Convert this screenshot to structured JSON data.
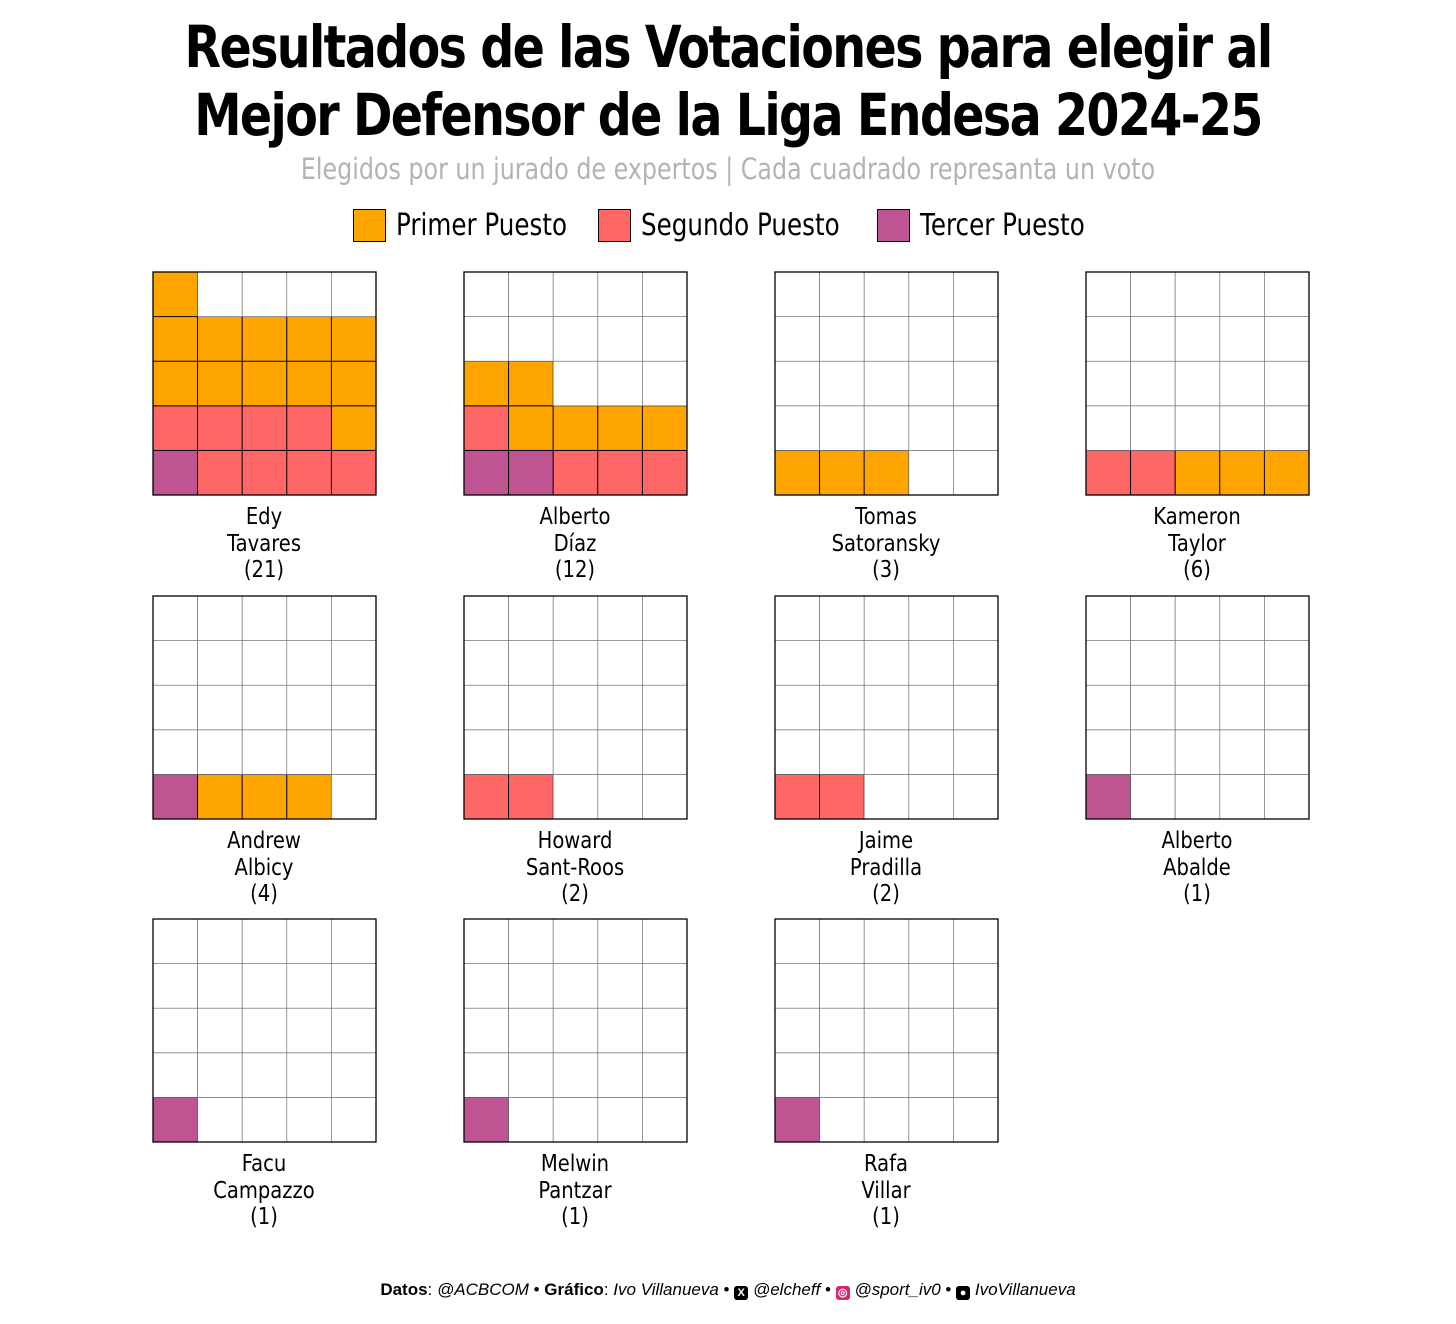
{
  "title_line1": "Resultados de las Votaciones para elegir al",
  "title_line2": "Mejor Defensor de la Liga Endesa 2024-25",
  "subtitle": "Elegidos por un jurado de expertos | Cada cuadrado represanta un voto",
  "legend": [
    {
      "label": "Primer Puesto",
      "color": "#FFA500"
    },
    {
      "label": "Segundo Puesto",
      "color": "#FF6666"
    },
    {
      "label": "Tercer Puesto",
      "color": "#BF5493"
    }
  ],
  "colors": {
    "first": "#FFA500",
    "second": "#FF6666",
    "third": "#BF5493",
    "empty": "#FFFFFF"
  },
  "chart_data": {
    "type": "waffle",
    "grid": {
      "rows": 5,
      "cols": 5
    },
    "players": [
      {
        "first_name": "Edy",
        "last_name": "Tavares",
        "total_label": "(21)",
        "first": 12,
        "second": 8,
        "third": 1
      },
      {
        "first_name": "Alberto",
        "last_name": "Díaz",
        "total_label": "(12)",
        "first": 6,
        "second": 4,
        "third": 2
      },
      {
        "first_name": "Tomas",
        "last_name": "Satoransky",
        "total_label": "(3)",
        "first": 3,
        "second": 0,
        "third": 0
      },
      {
        "first_name": "Kameron",
        "last_name": "Taylor",
        "total_label": "(6)",
        "first": 3,
        "second": 2,
        "third": 0
      },
      {
        "first_name": "Andrew",
        "last_name": "Albicy",
        "total_label": "(4)",
        "first": 3,
        "second": 0,
        "third": 1
      },
      {
        "first_name": "Howard",
        "last_name": "Sant-Roos",
        "total_label": "(2)",
        "first": 0,
        "second": 2,
        "third": 0
      },
      {
        "first_name": "Jaime",
        "last_name": "Pradilla",
        "total_label": "(2)",
        "first": 0,
        "second": 2,
        "third": 0
      },
      {
        "first_name": "Alberto",
        "last_name": "Abalde",
        "total_label": "(1)",
        "first": 0,
        "second": 0,
        "third": 1
      },
      {
        "first_name": "Facu",
        "last_name": "Campazzo",
        "total_label": "(1)",
        "first": 0,
        "second": 0,
        "third": 1
      },
      {
        "first_name": "Melwin",
        "last_name": "Pantzar",
        "total_label": "(1)",
        "first": 0,
        "second": 0,
        "third": 1
      },
      {
        "first_name": "Rafa",
        "last_name": "Villar",
        "total_label": "(1)",
        "first": 0,
        "second": 0,
        "third": 1
      }
    ]
  },
  "footer": {
    "datos_label": "Datos",
    "datos_value": "@ACBCOM",
    "grafico_label": "Gráfico",
    "grafico_value": "Ivo Villanueva",
    "twitter": "@elcheff",
    "twitter_icon": "x-icon",
    "instagram": "@sport_iv0",
    "instagram_icon": "instagram-icon",
    "github": "IvoVillanueva",
    "github_icon": "github-icon"
  }
}
